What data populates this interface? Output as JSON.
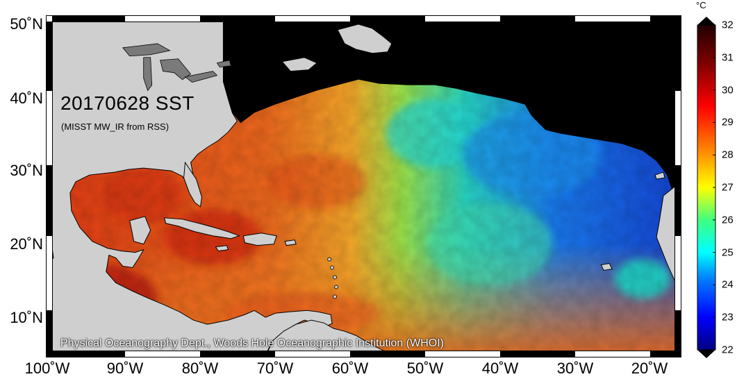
{
  "map": {
    "title": "20170628 SST",
    "subtitle": "(MISST MW_IR from RSS)",
    "credit": "Physical Oceanography Dept., Woods Hole Oceanographic Institution (WHOI)",
    "lat_labels": [
      "50˚N",
      "40˚N",
      "30˚N",
      "20˚N",
      "10˚N"
    ],
    "lon_labels": [
      "100˚W",
      "90˚W",
      "80˚W",
      "70˚W",
      "60˚W",
      "50˚W",
      "40˚W",
      "30˚W",
      "20˚W"
    ],
    "lat_values": [
      50,
      40,
      30,
      20,
      10
    ],
    "lon_values": [
      -100,
      -90,
      -80,
      -70,
      -60,
      -50,
      -40,
      -30,
      -20
    ],
    "lat_range": [
      5,
      50.5
    ],
    "lon_range": [
      -100.5,
      -15
    ],
    "land_color": "#cfcfcf",
    "nodata_color": "#000000"
  },
  "colorbar": {
    "unit": "°C",
    "min": 22,
    "max": 32,
    "ticks": [
      "32",
      "31",
      "30",
      "29",
      "28",
      "27",
      "26",
      "25",
      "24",
      "23",
      "22"
    ],
    "colors": [
      "#000080",
      "#0000ff",
      "#0080ff",
      "#00ffff",
      "#40ff80",
      "#ffff00",
      "#ff8000",
      "#ff0000",
      "#800000",
      "#200000"
    ]
  }
}
